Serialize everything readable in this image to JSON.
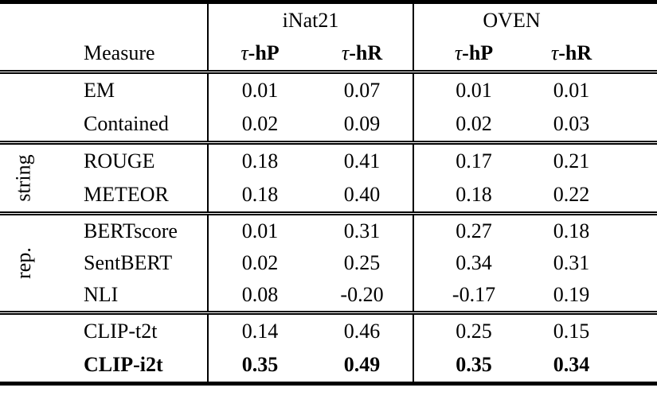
{
  "table": {
    "column_groups": [
      {
        "label": "iNat21"
      },
      {
        "label": "OVEN"
      }
    ],
    "measure_header": "Measure",
    "sub_headers": [
      {
        "tau": "τ",
        "metric": "-hP"
      },
      {
        "tau": "τ",
        "metric": "-hR"
      },
      {
        "tau": "τ",
        "metric": "-hP"
      },
      {
        "tau": "τ",
        "metric": "-hR"
      }
    ],
    "groups": [
      {
        "label": "",
        "rows": [
          {
            "measure": "EM",
            "values": [
              "0.01",
              "0.07",
              "0.01",
              "0.01"
            ],
            "bold": false
          },
          {
            "measure": "Contained",
            "values": [
              "0.02",
              "0.09",
              "0.02",
              "0.03"
            ],
            "bold": false
          }
        ]
      },
      {
        "label": "string",
        "rows": [
          {
            "measure": "ROUGE",
            "values": [
              "0.18",
              "0.41",
              "0.17",
              "0.21"
            ],
            "bold": false
          },
          {
            "measure": "METEOR",
            "values": [
              "0.18",
              "0.40",
              "0.18",
              "0.22"
            ],
            "bold": false
          }
        ]
      },
      {
        "label": "rep.",
        "rows": [
          {
            "measure": "BERTscore",
            "values": [
              "0.01",
              "0.31",
              "0.27",
              "0.18"
            ],
            "bold": false
          },
          {
            "measure": "SentBERT",
            "values": [
              "0.02",
              "0.25",
              "0.34",
              "0.31"
            ],
            "bold": false
          },
          {
            "measure": "NLI",
            "values": [
              "0.08",
              "-0.20",
              "-0.17",
              "0.19"
            ],
            "bold": false
          }
        ]
      },
      {
        "label": "",
        "rows": [
          {
            "measure": "CLIP-t2t",
            "values": [
              "0.14",
              "0.46",
              "0.25",
              "0.15"
            ],
            "bold": false
          },
          {
            "measure": "CLIP-i2t",
            "values": [
              "0.35",
              "0.49",
              "0.35",
              "0.34"
            ],
            "bold": true
          }
        ]
      }
    ]
  },
  "colors": {
    "text": "#000000",
    "background": "#ffffff",
    "rule": "#000000"
  }
}
